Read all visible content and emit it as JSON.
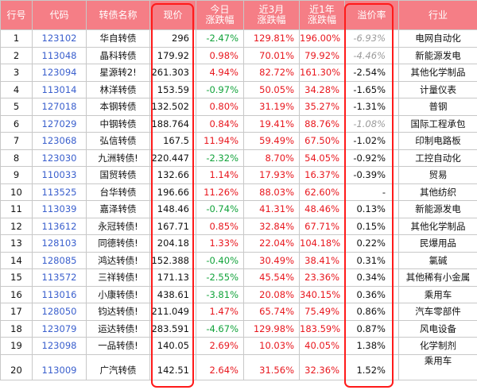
{
  "headers": {
    "row_no": "行号",
    "code": "代码",
    "name": "转债名称",
    "price": "现价",
    "today_l1": "今日",
    "today_l2": "涨跌幅",
    "m3_l1": "近3月",
    "m3_l2": "涨跌幅",
    "y1_l1": "近1年",
    "y1_l2": "涨跌幅",
    "premium": "溢价率",
    "industry": "行业"
  },
  "rows": [
    {
      "no": "1",
      "code": "123102",
      "name": "华自转债",
      "price": "296",
      "today": "-2.47%",
      "m3": "129.81%",
      "y1": "196.00%",
      "premium": "-6.93%",
      "industry": "电网自动化"
    },
    {
      "no": "2",
      "code": "113048",
      "name": "晶科转债",
      "price": "179.92",
      "today": "0.98%",
      "m3": "70.01%",
      "y1": "79.92%",
      "premium": "-4.46%",
      "industry": "新能源发电"
    },
    {
      "no": "3",
      "code": "123094",
      "name": "星源转2!",
      "price": "261.303",
      "today": "4.94%",
      "m3": "82.72%",
      "y1": "161.30%",
      "premium": "-2.54%",
      "industry": "其他化学制品"
    },
    {
      "no": "4",
      "code": "113014",
      "name": "林洋转债",
      "price": "153.59",
      "today": "-0.97%",
      "m3": "50.05%",
      "y1": "34.28%",
      "premium": "-1.65%",
      "industry": "计量仪表"
    },
    {
      "no": "5",
      "code": "127018",
      "name": "本钢转债",
      "price": "132.502",
      "today": "0.80%",
      "m3": "31.19%",
      "y1": "35.27%",
      "premium": "-1.31%",
      "industry": "普钢"
    },
    {
      "no": "6",
      "code": "127029",
      "name": "中钢转债",
      "price": "188.764",
      "today": "0.84%",
      "m3": "19.41%",
      "y1": "88.76%",
      "premium": "-1.08%",
      "industry": "国际工程承包"
    },
    {
      "no": "7",
      "code": "123068",
      "name": "弘信转债",
      "price": "167.5",
      "today": "11.94%",
      "m3": "59.49%",
      "y1": "67.50%",
      "premium": "-1.02%",
      "industry": "印制电路板"
    },
    {
      "no": "8",
      "code": "123030",
      "name": "九洲转债!",
      "price": "220.447",
      "today": "-2.32%",
      "m3": "8.70%",
      "y1": "54.05%",
      "premium": "-0.92%",
      "industry": "工控自动化"
    },
    {
      "no": "9",
      "code": "110033",
      "name": "国贸转债",
      "price": "132.66",
      "today": "1.14%",
      "m3": "17.93%",
      "y1": "16.37%",
      "premium": "-0.39%",
      "industry": "贸易"
    },
    {
      "no": "10",
      "code": "113525",
      "name": "台华转债",
      "price": "196.66",
      "today": "11.26%",
      "m3": "88.03%",
      "y1": "62.60%",
      "premium": "-",
      "industry": "其他纺织"
    },
    {
      "no": "11",
      "code": "113039",
      "name": "嘉泽转债",
      "price": "148.46",
      "today": "-0.74%",
      "m3": "41.31%",
      "y1": "48.46%",
      "premium": "0.13%",
      "industry": "新能源发电"
    },
    {
      "no": "12",
      "code": "113612",
      "name": "永冠转债!",
      "price": "167.71",
      "today": "0.85%",
      "m3": "32.84%",
      "y1": "67.71%",
      "premium": "0.15%",
      "industry": "其他化学制品"
    },
    {
      "no": "13",
      "code": "128103",
      "name": "同德转债!",
      "price": "204.18",
      "today": "1.33%",
      "m3": "22.04%",
      "y1": "104.18%",
      "premium": "0.22%",
      "industry": "民爆用品"
    },
    {
      "no": "14",
      "code": "128085",
      "name": "鸿达转债!",
      "price": "152.388",
      "today": "-0.40%",
      "m3": "30.49%",
      "y1": "38.41%",
      "premium": "0.31%",
      "industry": "氯碱"
    },
    {
      "no": "15",
      "code": "113572",
      "name": "三祥转债!",
      "price": "171.13",
      "today": "-2.55%",
      "m3": "45.54%",
      "y1": "23.36%",
      "premium": "0.34%",
      "industry": "其他稀有小金属"
    },
    {
      "no": "16",
      "code": "113016",
      "name": "小康转债!",
      "price": "438.61",
      "today": "-3.81%",
      "m3": "20.08%",
      "y1": "340.15%",
      "premium": "0.36%",
      "industry": "乘用车"
    },
    {
      "no": "17",
      "code": "128050",
      "name": "钧达转债!",
      "price": "211.049",
      "today": "1.47%",
      "m3": "65.74%",
      "y1": "75.49%",
      "premium": "0.86%",
      "industry": "汽车零部件"
    },
    {
      "no": "18",
      "code": "123079",
      "name": "运达转债!",
      "price": "283.591",
      "today": "-4.67%",
      "m3": "129.98%",
      "y1": "183.59%",
      "premium": "0.87%",
      "industry": "风电设备"
    },
    {
      "no": "19",
      "code": "123098",
      "name": "一品转债!",
      "price": "140.05",
      "today": "2.69%",
      "m3": "10.03%",
      "y1": "40.05%",
      "premium": "1.38%",
      "industry": "化学制剂"
    },
    {
      "no": "20",
      "code": "113009",
      "name": "广汽转债",
      "price": "142.51",
      "today": "2.64%",
      "m3": "31.56%",
      "y1": "32.36%",
      "premium": "1.52%",
      "industry": "乘用车"
    }
  ],
  "colors": {
    "header_bg": "#f57e86",
    "positive": "#e8171e",
    "negative": "#12a33b",
    "code_link": "#3a5fcd",
    "highlight_box": "#ff1a1a"
  }
}
